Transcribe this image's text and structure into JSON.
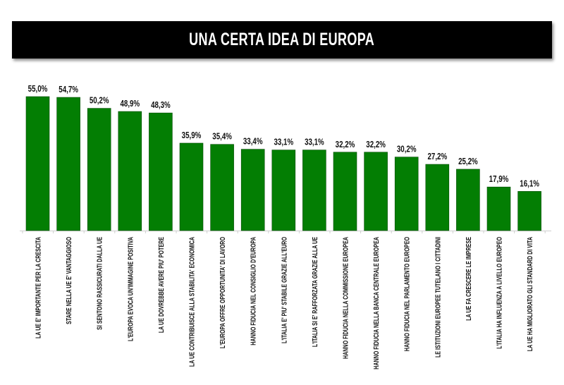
{
  "chart_data": {
    "type": "bar",
    "title": "UNA CERTA IDEA DI EUROPA",
    "xlabel": "",
    "ylabel": "",
    "ylim": [
      0,
      55
    ],
    "grid": false,
    "bar_color": "#037e03",
    "categories": [
      "LA UE E' IMPORTANTE PER LA CRESCITA",
      "STARE NELLA UE E' VANTAGGIOSO",
      "SI SENTONO RASSICURATI DALLA UE",
      "L'EUROPA EVOCA UN'IMMAGINE POSITIVA",
      "LA UE DOVREBBE AVERE PIU' POTERE",
      "LA UE CONTRIBUISCE ALLA STABILITA' ECONOMICA",
      "L'EUROPA OFFRE OPPORTUNITA' DI LAVORO",
      "HANNO FIDUCIA NEL CONSIGLIO D'EUROPA",
      "L'ITALIA E' PIU' STABILE GRAZIE ALL'EURO",
      "L'ITALIA SI E' RAFFORZATA GRAZIE ALLA UE",
      "HANNO FIDUCIA NELLA COMMISSIONE EUROPEA",
      "HANNO FIDUCIA NELLA BANCA CENTRALE EUROPEA",
      "HANNO FIDUCIA NEL PARLAMENTO EUROPEO",
      "LE ISTITUZIONI EUROPEE TUTELANO I CITTADINI",
      "LA UE FA CRESCERE LE IMPRESE",
      "L'ITALIA HA  INFLUENZA A LIVELLO EUROPEO",
      "LA UE HA MIGLIORATO GLI STANDARD DI VITA"
    ],
    "values": [
      55.0,
      54.7,
      50.2,
      48.9,
      48.3,
      35.9,
      35.4,
      33.4,
      33.1,
      33.1,
      32.2,
      32.2,
      30.2,
      27.2,
      25.2,
      17.9,
      16.1
    ],
    "data_labels": [
      "55,0%",
      "54,7%",
      "50,2%",
      "48,9%",
      "48,3%",
      "35,9%",
      "35,4%",
      "33,4%",
      "33,1%",
      "33,1%",
      "32,2%",
      "32,2%",
      "30,2%",
      "27,2%",
      "25,2%",
      "17,9%",
      "16,1%"
    ]
  }
}
